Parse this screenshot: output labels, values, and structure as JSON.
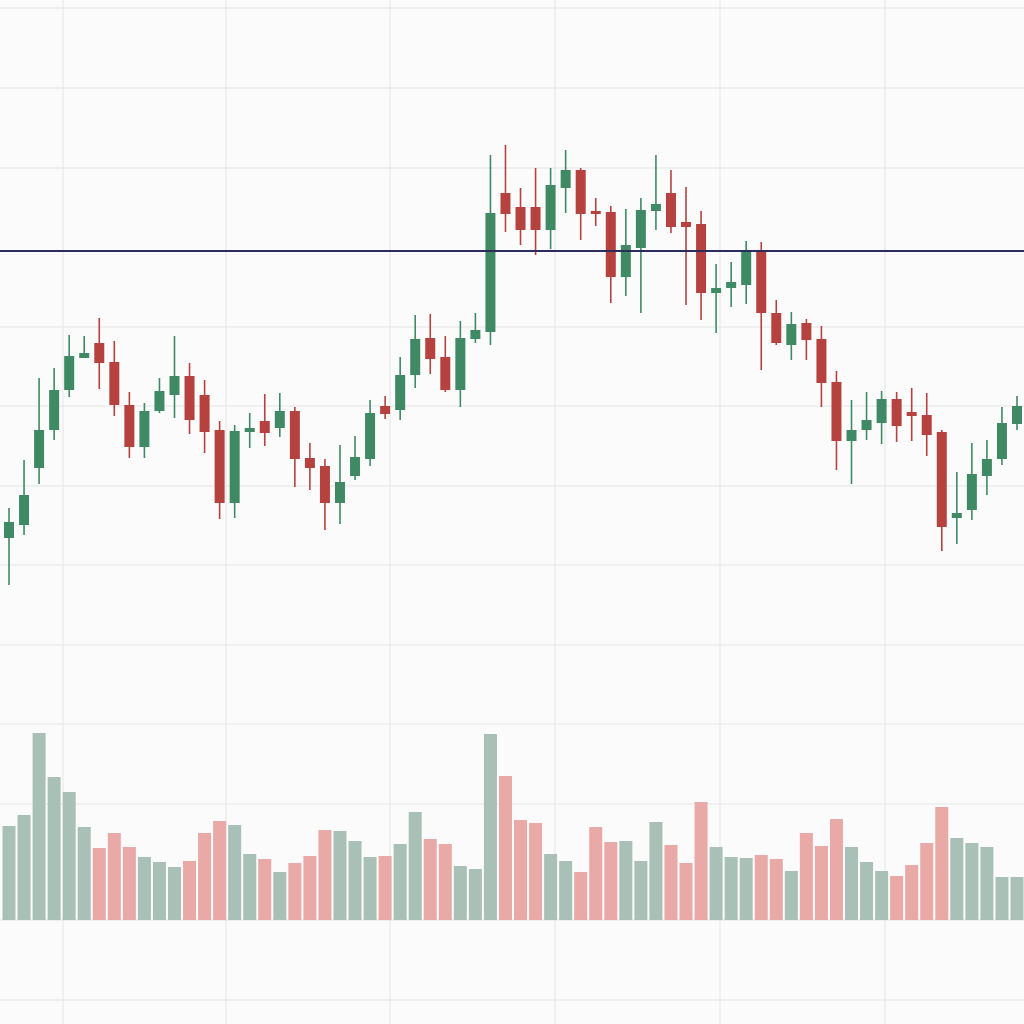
{
  "chart_data": {
    "type": "candlestick",
    "up_color": "#3f8a64",
    "down_color": "#b5423f",
    "volume_up_color": "#a8c0b6",
    "volume_down_color": "#e8a9a7",
    "reference_line": 749,
    "reference_color": "#2b2b5c",
    "ylim": [
      300,
      1000
    ],
    "volume_ylim": [
      0,
      200
    ],
    "open": [
      462,
      475,
      532,
      570,
      610,
      642,
      657,
      638,
      595,
      553,
      589,
      605,
      624,
      605,
      570,
      497,
      568,
      579,
      572,
      589,
      542,
      534,
      497,
      524,
      541,
      594,
      590,
      625,
      662,
      643,
      610,
      661,
      668,
      807,
      793,
      793,
      770,
      812,
      830,
      789,
      788,
      723,
      752,
      789,
      807,
      778,
      776,
      707,
      712,
      715,
      749,
      687,
      655,
      677,
      661,
      618,
      559,
      570,
      577,
      601,
      588,
      585,
      568,
      482,
      490,
      524,
      541,
      576
    ],
    "high": [
      492,
      540,
      622,
      632,
      665,
      664,
      682,
      659,
      608,
      597,
      622,
      664,
      637,
      620,
      579,
      575,
      587,
      606,
      607,
      593,
      557,
      541,
      555,
      564,
      600,
      604,
      643,
      685,
      686,
      664,
      679,
      687,
      845,
      855,
      812,
      832,
      832,
      850,
      832,
      802,
      794,
      791,
      802,
      845,
      830,
      813,
      789,
      736,
      738,
      759,
      758,
      700,
      688,
      681,
      674,
      629,
      600,
      608,
      609,
      608,
      612,
      607,
      570,
      528,
      557,
      560,
      593,
      604
    ],
    "low": [
      415,
      465,
      516,
      560,
      603,
      642,
      611,
      584,
      542,
      542,
      587,
      582,
      566,
      547,
      481,
      482,
      552,
      554,
      563,
      513,
      510,
      470,
      476,
      520,
      534,
      581,
      580,
      612,
      626,
      608,
      593,
      657,
      655,
      768,
      755,
      745,
      751,
      787,
      760,
      774,
      697,
      704,
      687,
      770,
      767,
      695,
      680,
      667,
      693,
      696,
      630,
      655,
      640,
      640,
      593,
      530,
      516,
      560,
      556,
      558,
      559,
      544,
      449,
      456,
      480,
      505,
      535,
      570
    ],
    "close": [
      478,
      505,
      570,
      610,
      644,
      647,
      637,
      595,
      553,
      589,
      609,
      624,
      580,
      568,
      497,
      569,
      572,
      567,
      589,
      541,
      532,
      497,
      518,
      543,
      587,
      586,
      625,
      661,
      641,
      610,
      662,
      670,
      787,
      786,
      770,
      770,
      815,
      830,
      786,
      786,
      723,
      755,
      790,
      796,
      773,
      773,
      707,
      712,
      718,
      748,
      687,
      657,
      676,
      660,
      617,
      559,
      570,
      580,
      601,
      574,
      584,
      565,
      473,
      487,
      526,
      541,
      577,
      594
    ],
    "volume": [
      94,
      105,
      187,
      143,
      128,
      93,
      72,
      87,
      73,
      63,
      58,
      53,
      59,
      87,
      99,
      95,
      66,
      61,
      48,
      57,
      64,
      90,
      89,
      79,
      63,
      64,
      76,
      108,
      81,
      76,
      54,
      51,
      186,
      144,
      100,
      97,
      66,
      59,
      48,
      93,
      78,
      79,
      59,
      98,
      75,
      57,
      118,
      73,
      63,
      62,
      65,
      61,
      49,
      87,
      74,
      101,
      73,
      58,
      49,
      44,
      55,
      77,
      113,
      82,
      77,
      73,
      43,
      43
    ]
  }
}
